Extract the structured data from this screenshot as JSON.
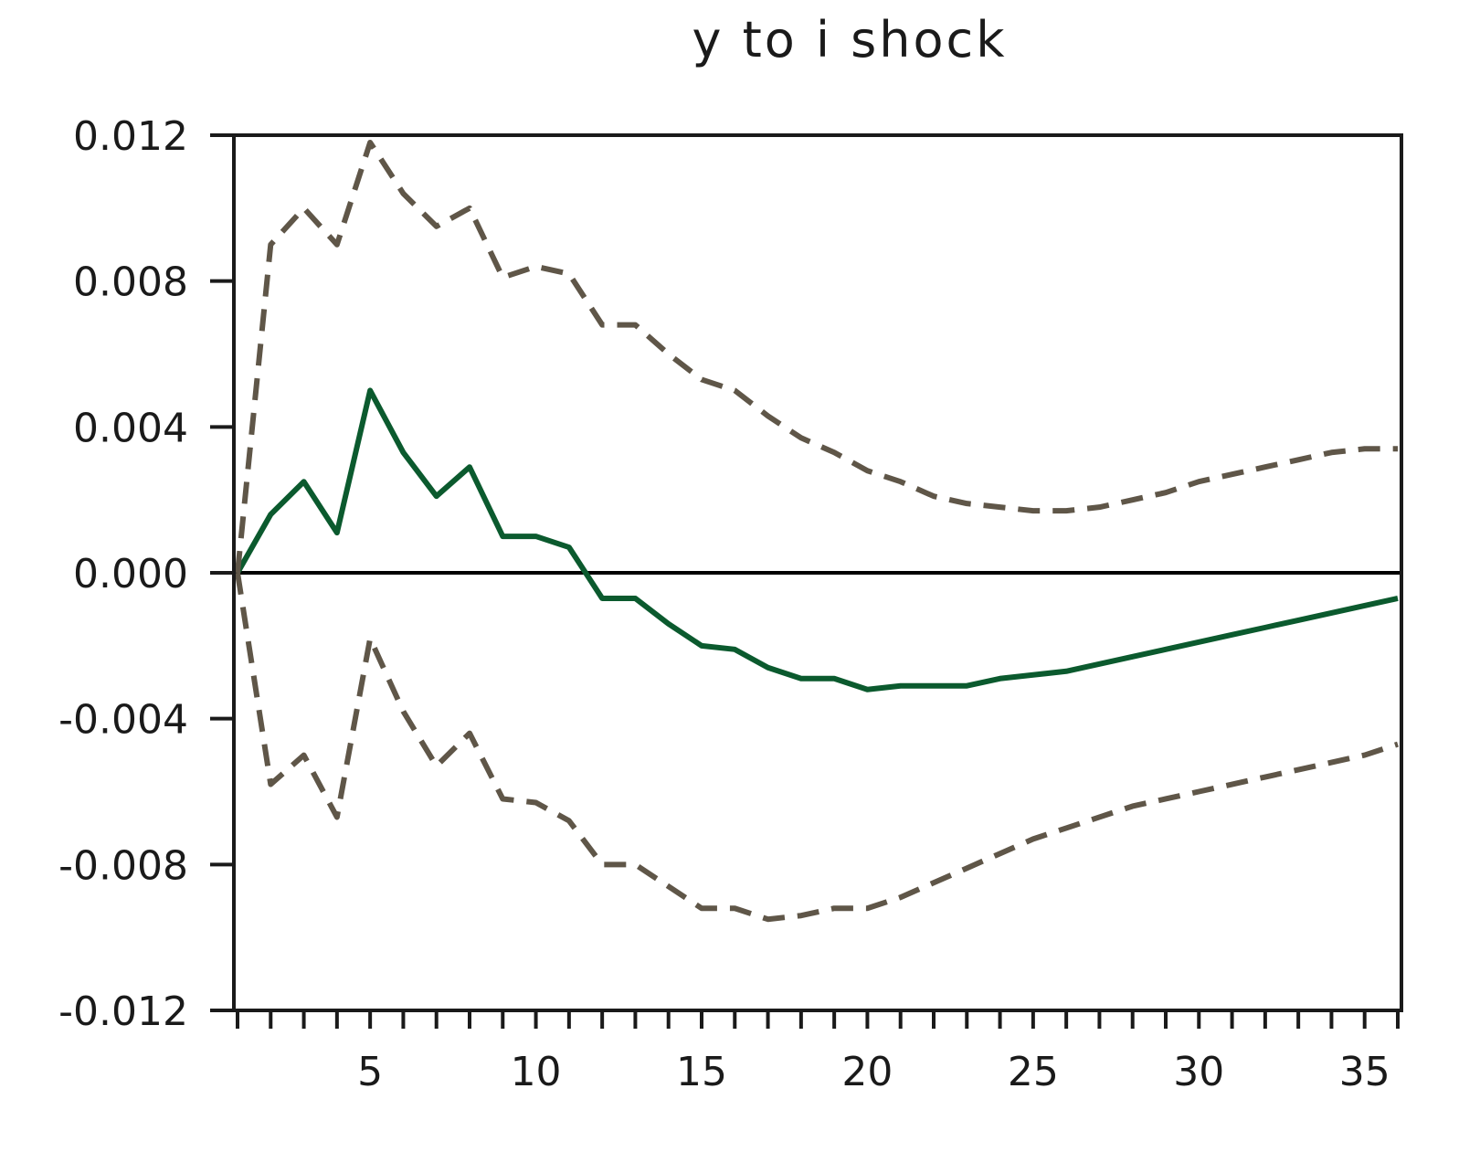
{
  "chart_data": {
    "type": "line",
    "title": "y to i shock",
    "xlabel": "",
    "ylabel": "",
    "xlim": [
      1,
      36
    ],
    "ylim": [
      -0.012,
      0.012
    ],
    "yticks": [
      "0.012",
      "0.008",
      "0.004",
      "0.000",
      "-0.004",
      "-0.008",
      "-0.012"
    ],
    "ytick_values": [
      0.012,
      0.008,
      0.004,
      0.0,
      -0.004,
      -0.008,
      -0.012
    ],
    "xticks": [
      "5",
      "10",
      "15",
      "20",
      "25",
      "30",
      "35"
    ],
    "xtick_values": [
      5,
      10,
      15,
      20,
      25,
      30,
      35
    ],
    "grid": false,
    "zero_line": true,
    "x": [
      1,
      2,
      3,
      4,
      5,
      6,
      7,
      8,
      9,
      10,
      11,
      12,
      13,
      14,
      15,
      16,
      17,
      18,
      19,
      20,
      21,
      22,
      23,
      24,
      25,
      26,
      27,
      28,
      29,
      30,
      31,
      32,
      33,
      34,
      35,
      36
    ],
    "series": [
      {
        "style": "solid",
        "color": "#0b5a2e",
        "values": [
          0.0,
          0.0016,
          0.0025,
          0.0011,
          0.005,
          0.0033,
          0.0021,
          0.0029,
          0.001,
          0.001,
          0.0007,
          -0.0007,
          -0.0007,
          -0.0014,
          -0.002,
          -0.0021,
          -0.0026,
          -0.0029,
          -0.0029,
          -0.0032,
          -0.0031,
          -0.0031,
          -0.0031,
          -0.0029,
          -0.0028,
          -0.0027,
          -0.0025,
          -0.0023,
          -0.0021,
          -0.0019,
          -0.0017,
          -0.0015,
          -0.0013,
          -0.0011,
          -0.0009,
          -0.0007
        ]
      },
      {
        "style": "dashed",
        "color": "#5f5648",
        "values": [
          0.0,
          0.009,
          0.01,
          0.009,
          0.0118,
          0.0104,
          0.0095,
          0.01,
          0.0081,
          0.0084,
          0.0082,
          0.0068,
          0.0068,
          0.006,
          0.0053,
          0.005,
          0.0043,
          0.0037,
          0.0033,
          0.0028,
          0.0025,
          0.0021,
          0.0019,
          0.0018,
          0.0017,
          0.0017,
          0.0018,
          0.002,
          0.0022,
          0.0025,
          0.0027,
          0.0029,
          0.0031,
          0.0033,
          0.0034,
          0.0034
        ]
      },
      {
        "style": "dashed",
        "color": "#5f5648",
        "values": [
          0.0,
          -0.0058,
          -0.005,
          -0.0067,
          -0.0018,
          -0.0038,
          -0.0053,
          -0.0044,
          -0.0062,
          -0.0063,
          -0.0068,
          -0.008,
          -0.008,
          -0.0086,
          -0.0092,
          -0.0092,
          -0.0095,
          -0.0094,
          -0.0092,
          -0.0092,
          -0.0089,
          -0.0085,
          -0.0081,
          -0.0077,
          -0.0073,
          -0.007,
          -0.0067,
          -0.0064,
          -0.0062,
          -0.006,
          -0.0058,
          -0.0056,
          -0.0054,
          -0.0052,
          -0.005,
          -0.0047
        ]
      }
    ]
  }
}
